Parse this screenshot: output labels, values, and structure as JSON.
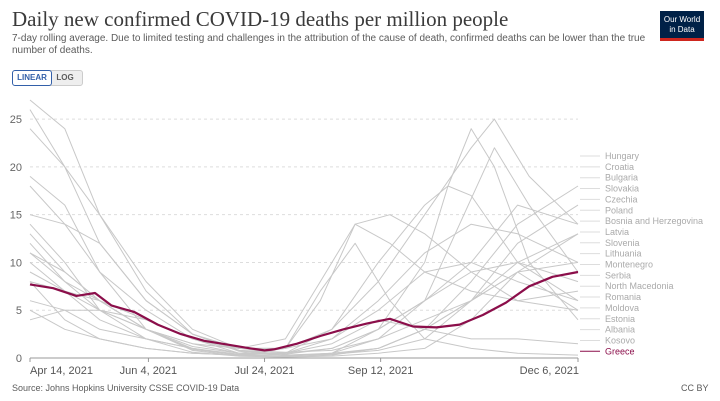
{
  "header": {
    "title": "Daily new confirmed COVID-19 deaths per million people",
    "subtitle": "7-day rolling average. Due to limited testing and challenges in the attribution of the cause of death, confirmed deaths can be lower than the true number of deaths."
  },
  "logo": {
    "line1": "Our World",
    "line2": "in Data"
  },
  "controls": {
    "linear_label": "LINEAR",
    "log_label": "LOG"
  },
  "footer": {
    "source": "Source: Johns Hopkins University CSSE COVID-19 Data",
    "license": "CC BY"
  },
  "colors": {
    "highlight": "#8b0e4a",
    "background_series": "#c8c8c8",
    "grid": "#dddddd"
  },
  "chart_data": {
    "type": "line",
    "title": "Daily new confirmed COVID-19 deaths per million people",
    "xlabel": "",
    "ylabel": "",
    "x_ticks": [
      "Apr 14, 2021",
      "Jun 4, 2021",
      "Jul 24, 2021",
      "Sep 12, 2021",
      "Dec 6, 2021"
    ],
    "x_tick_days": [
      0,
      51,
      101,
      151,
      236
    ],
    "x_range_days": [
      0,
      236
    ],
    "y_ticks": [
      0,
      5,
      10,
      15,
      20,
      25
    ],
    "ylim": [
      0,
      27
    ],
    "highlighted": "Greece",
    "series": [
      {
        "name": "Hungary",
        "x": [
          0,
          15,
          30,
          50,
          70,
          90,
          110,
          130,
          150,
          170,
          190,
          210,
          236
        ],
        "values": [
          27,
          24,
          15,
          7,
          2.5,
          0.7,
          0.3,
          0.4,
          0.8,
          2,
          6,
          12,
          16
        ]
      },
      {
        "name": "Croatia",
        "x": [
          0,
          15,
          30,
          50,
          70,
          90,
          110,
          130,
          150,
          170,
          190,
          210,
          236
        ],
        "values": [
          15,
          14,
          12,
          6,
          2.5,
          0.8,
          0.4,
          1,
          3,
          6,
          10,
          16,
          14
        ]
      },
      {
        "name": "Bulgaria",
        "x": [
          0,
          15,
          30,
          50,
          70,
          90,
          110,
          130,
          150,
          170,
          190,
          200,
          215,
          236
        ],
        "values": [
          26,
          20,
          12,
          6,
          2.5,
          1,
          1,
          3,
          8,
          15,
          22,
          25,
          19,
          14
        ]
      },
      {
        "name": "Slovakia",
        "x": [
          0,
          15,
          30,
          50,
          70,
          90,
          110,
          130,
          150,
          170,
          190,
          210,
          236
        ],
        "values": [
          13,
          9,
          6,
          3,
          0.8,
          0.2,
          0.1,
          0.3,
          1,
          3,
          8,
          14,
          18
        ]
      },
      {
        "name": "Czechia",
        "x": [
          0,
          15,
          30,
          50,
          70,
          90,
          110,
          130,
          150,
          170,
          190,
          210,
          236
        ],
        "values": [
          14,
          10,
          5,
          2,
          0.6,
          0.2,
          0.1,
          0.2,
          0.5,
          1,
          4,
          9,
          13
        ]
      },
      {
        "name": "Poland",
        "x": [
          0,
          15,
          30,
          50,
          70,
          90,
          110,
          130,
          150,
          170,
          190,
          210,
          236
        ],
        "values": [
          19,
          16,
          9,
          3,
          0.9,
          0.3,
          0.2,
          0.4,
          1,
          3,
          6,
          10,
          13
        ]
      },
      {
        "name": "Bosnia and Herzegovina",
        "x": [
          0,
          15,
          30,
          50,
          70,
          90,
          110,
          130,
          150,
          170,
          180,
          190,
          210,
          236
        ],
        "values": [
          24,
          20,
          15,
          8,
          3,
          1,
          0.5,
          3,
          10,
          16,
          18,
          17,
          10,
          6
        ]
      },
      {
        "name": "Latvia",
        "x": [
          0,
          15,
          30,
          50,
          70,
          90,
          110,
          130,
          150,
          170,
          185,
          200,
          215,
          236
        ],
        "values": [
          4,
          5,
          5,
          4,
          2,
          0.8,
          0.6,
          0.8,
          2,
          6,
          14,
          22,
          16,
          9
        ]
      },
      {
        "name": "Slovenia",
        "x": [
          0,
          15,
          30,
          50,
          70,
          90,
          110,
          130,
          150,
          170,
          190,
          210,
          236
        ],
        "values": [
          9,
          7,
          5,
          3,
          1.5,
          0.5,
          0.3,
          0.5,
          2,
          4,
          6,
          9,
          10
        ]
      },
      {
        "name": "Lithuania",
        "x": [
          0,
          15,
          30,
          50,
          70,
          90,
          110,
          130,
          150,
          170,
          190,
          210,
          236
        ],
        "values": [
          8,
          7,
          6,
          4,
          2,
          1,
          1,
          2,
          6,
          11,
          14,
          13,
          10
        ]
      },
      {
        "name": "Montenegro",
        "x": [
          0,
          15,
          30,
          50,
          70,
          90,
          110,
          125,
          140,
          155,
          170,
          190,
          210,
          236
        ],
        "values": [
          12,
          8,
          5,
          3,
          1.5,
          1,
          2,
          8,
          14,
          15,
          13,
          9,
          6,
          5
        ]
      },
      {
        "name": "Serbia",
        "x": [
          0,
          15,
          30,
          50,
          70,
          90,
          110,
          130,
          150,
          170,
          190,
          210,
          236
        ],
        "values": [
          11,
          9,
          6,
          3,
          1.2,
          0.5,
          0.5,
          2,
          5,
          9,
          10,
          8,
          6
        ]
      },
      {
        "name": "North Macedonia",
        "x": [
          0,
          15,
          30,
          50,
          70,
          90,
          110,
          125,
          140,
          155,
          170,
          190,
          210,
          236
        ],
        "values": [
          18,
          14,
          9,
          5,
          2,
          0.5,
          1,
          6,
          14,
          12,
          9,
          7,
          6,
          7
        ]
      },
      {
        "name": "Romania",
        "x": [
          0,
          15,
          30,
          50,
          70,
          90,
          110,
          130,
          150,
          170,
          180,
          190,
          200,
          215,
          236
        ],
        "values": [
          11,
          8,
          6,
          3,
          1,
          0.3,
          0.2,
          0.5,
          3,
          10,
          18,
          24,
          20,
          10,
          4
        ]
      },
      {
        "name": "Moldova",
        "x": [
          0,
          15,
          30,
          50,
          70,
          90,
          110,
          130,
          150,
          170,
          190,
          210,
          236
        ],
        "values": [
          6,
          5,
          3,
          2,
          1,
          0.4,
          0.5,
          1,
          3,
          6,
          9,
          10,
          8
        ]
      },
      {
        "name": "Estonia",
        "x": [
          0,
          15,
          30,
          50,
          70,
          90,
          110,
          130,
          150,
          170,
          190,
          210,
          236
        ],
        "values": [
          10,
          7,
          4,
          2,
          1,
          0.3,
          0.2,
          0.5,
          1,
          3,
          6,
          9,
          5
        ]
      },
      {
        "name": "Albania",
        "x": [
          0,
          15,
          30,
          50,
          70,
          90,
          110,
          130,
          150,
          170,
          190,
          210,
          236
        ],
        "values": [
          8,
          4,
          2,
          1,
          0.5,
          0.3,
          0.5,
          1.5,
          4,
          3,
          2,
          2,
          1.5
        ]
      },
      {
        "name": "Kosovo",
        "x": [
          0,
          15,
          30,
          50,
          70,
          90,
          110,
          125,
          140,
          155,
          170,
          190,
          210,
          236
        ],
        "values": [
          5,
          3,
          2,
          1,
          0.5,
          0.3,
          1,
          7,
          12,
          6,
          2,
          1,
          0.5,
          0.3
        ]
      },
      {
        "name": "Greece",
        "x": [
          0,
          10,
          20,
          28,
          35,
          45,
          55,
          65,
          75,
          85,
          95,
          101,
          105,
          115,
          125,
          135,
          145,
          155,
          165,
          175,
          185,
          195,
          205,
          215,
          225,
          236
        ],
        "values": [
          7.7,
          7.3,
          6.5,
          6.8,
          5.5,
          4.8,
          3.5,
          2.5,
          1.8,
          1.4,
          1,
          0.8,
          0.9,
          1.5,
          2.3,
          3,
          3.6,
          4.1,
          3.3,
          3.2,
          3.5,
          4.5,
          5.8,
          7.5,
          8.5,
          9
        ]
      }
    ]
  }
}
